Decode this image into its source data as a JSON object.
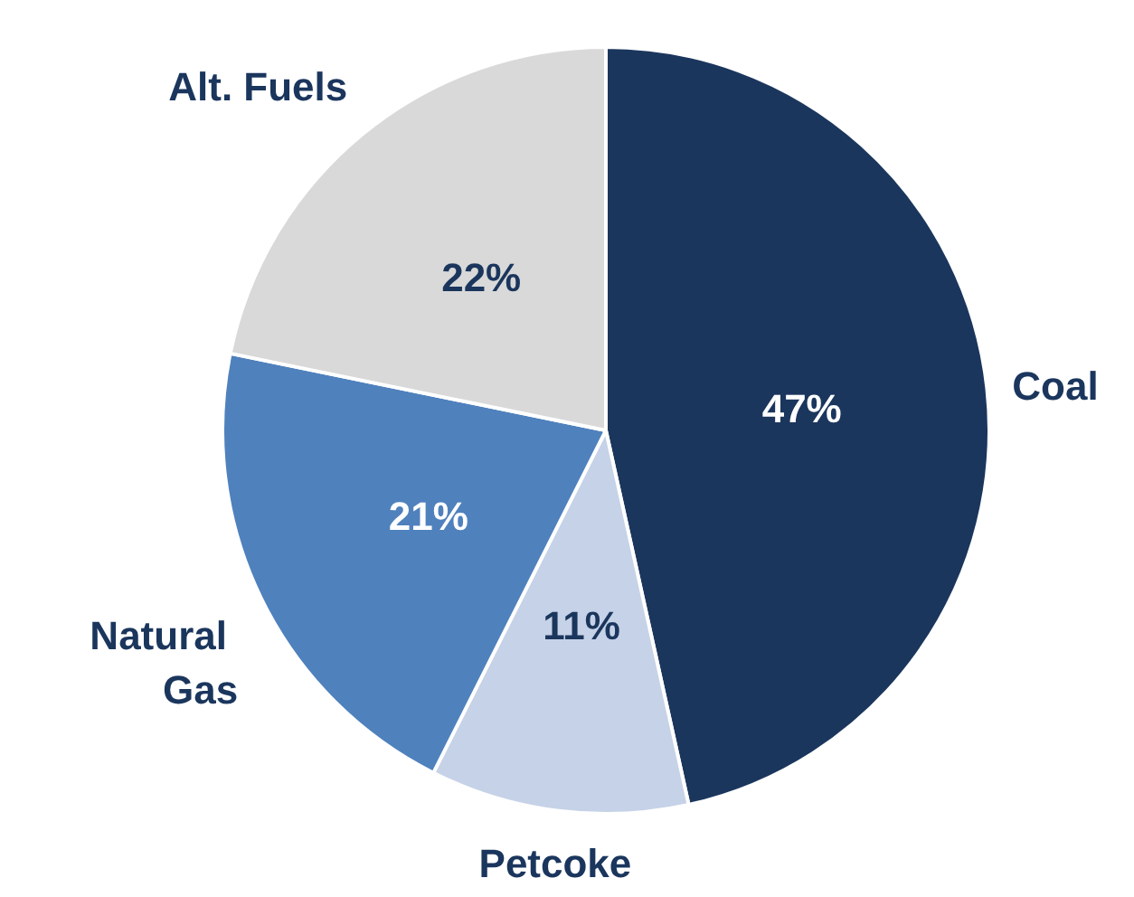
{
  "chart_data": {
    "type": "pie",
    "categories": [
      "Coal",
      "Petcoke",
      "Natural Gas",
      "Alt. Fuels"
    ],
    "values": [
      47,
      11,
      21,
      22
    ],
    "colors": [
      "#1b365d",
      "#c6d2e7",
      "#4f81bd",
      "#d9d9d9"
    ],
    "value_labels": [
      "47%",
      "11%",
      "21%",
      "22%"
    ],
    "legend": false
  }
}
